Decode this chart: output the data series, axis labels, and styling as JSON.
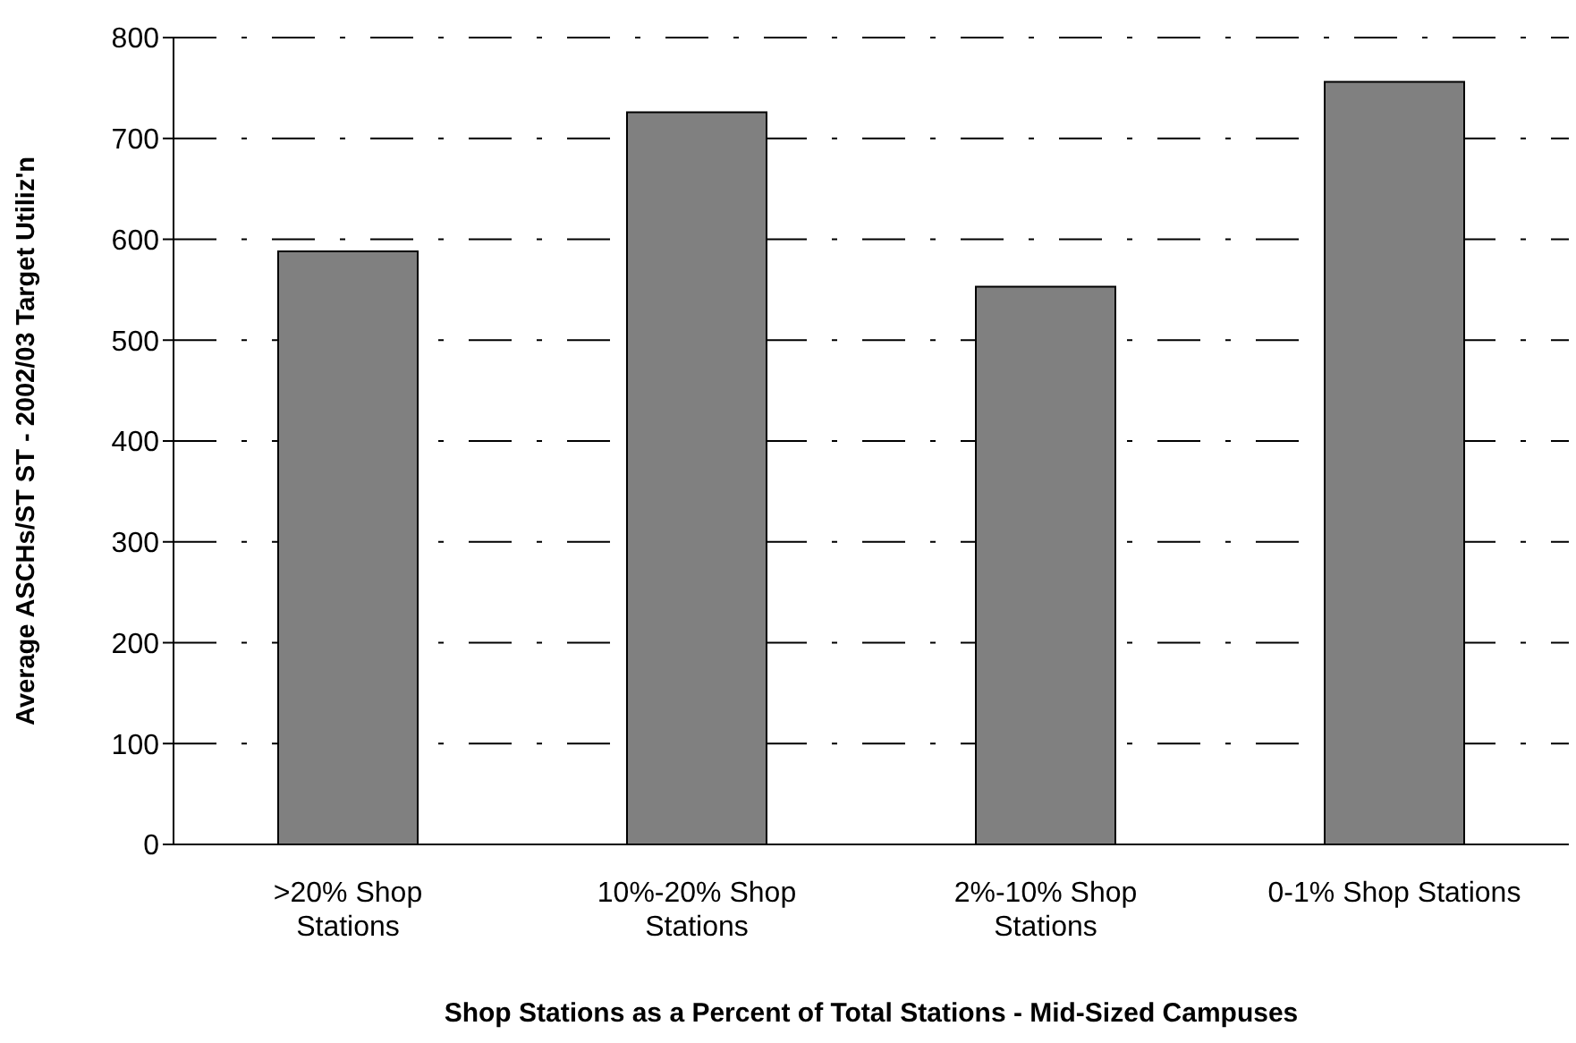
{
  "chart_data": {
    "type": "bar",
    "xlabel": "Shop Stations as a Percent of Total Stations - Mid-Sized Campuses",
    "ylabel": "Average ASCHs/ST ST - 2002/03 Target Utiliz'n",
    "categories": [
      ">20% Shop Stations",
      "10%-20% Shop Stations",
      "2%-10% Shop Stations",
      "0-1% Shop Stations"
    ],
    "values": [
      588,
      726,
      553,
      756
    ],
    "color": "#808080",
    "ylim": [
      0,
      800
    ],
    "yticks": [
      0,
      100,
      200,
      300,
      400,
      500,
      600,
      700,
      800
    ],
    "grid": "y"
  }
}
